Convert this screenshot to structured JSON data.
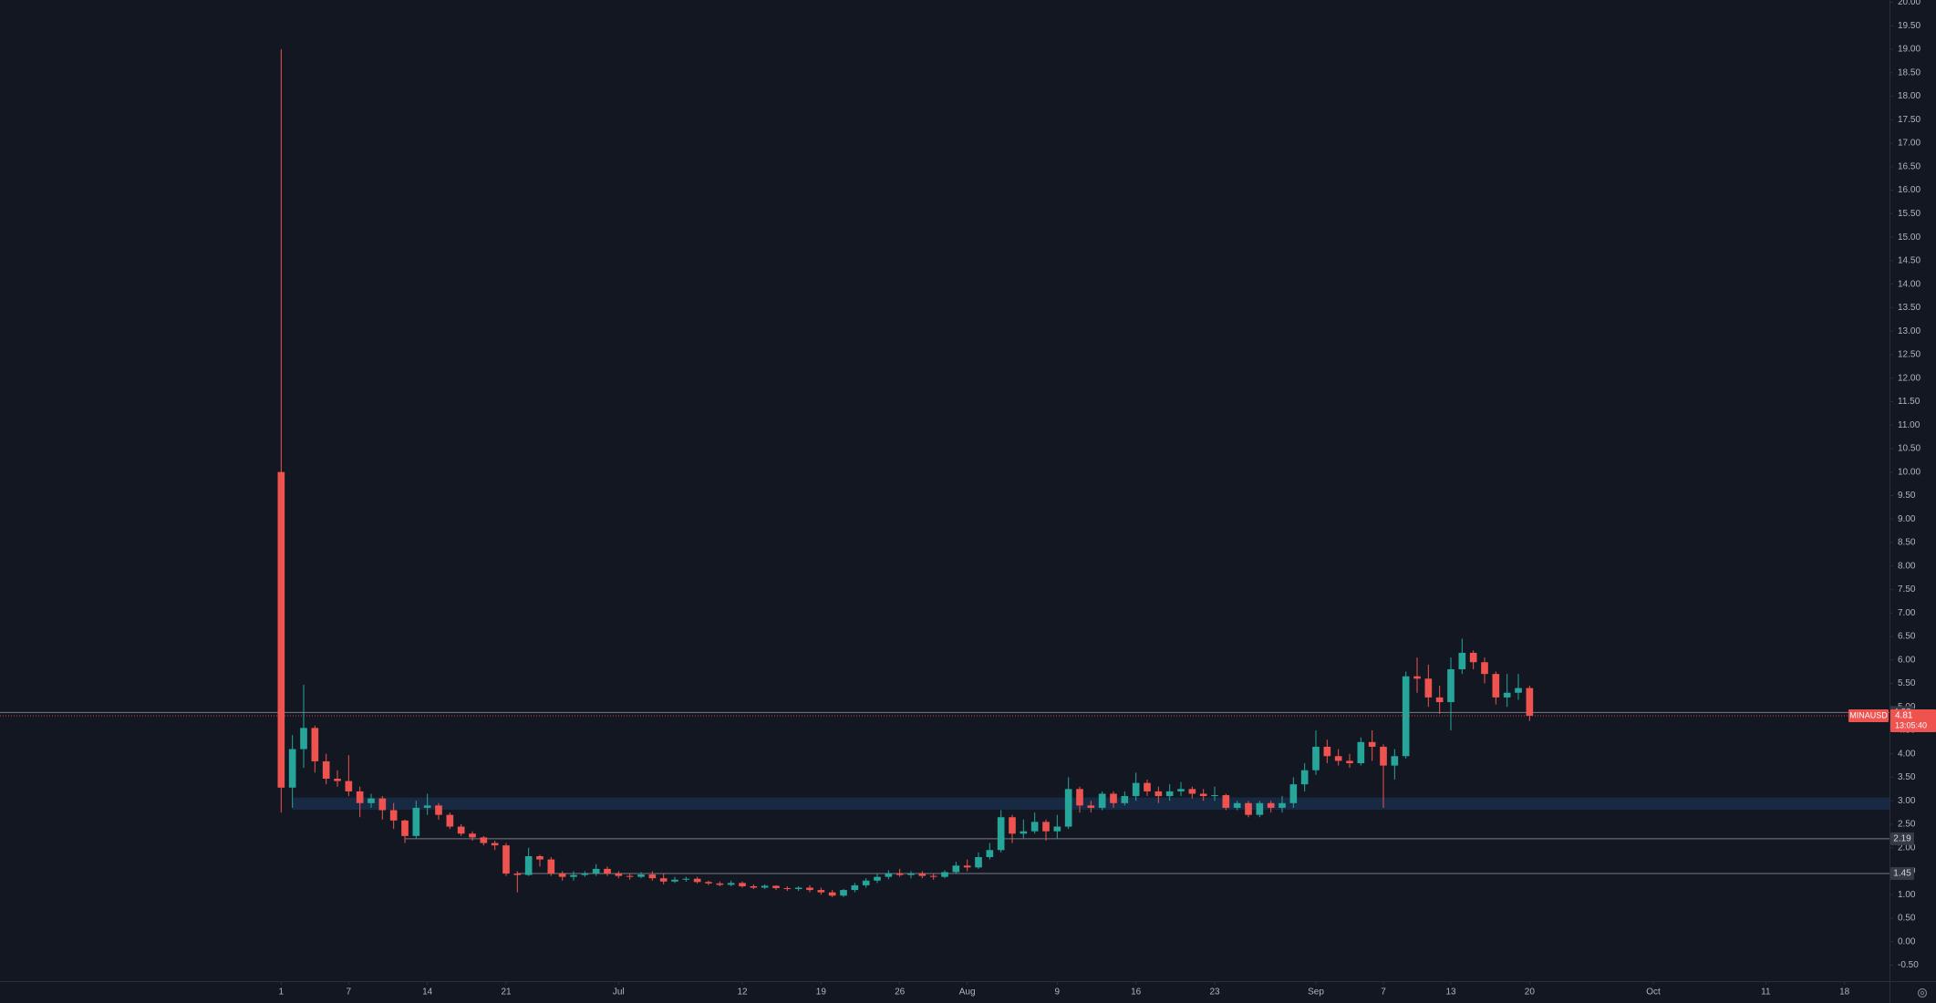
{
  "chart_data": {
    "type": "candlestick",
    "symbol": "MINAUSD",
    "countdown": "13:05:40",
    "up_color": "#26a69a",
    "down_color": "#ef5350",
    "x": [
      0,
      1,
      2,
      3,
      4,
      5,
      6,
      7,
      8,
      9,
      10,
      11,
      12,
      13,
      14,
      15,
      16,
      17,
      18,
      19,
      20,
      21,
      22,
      23,
      24,
      25,
      26,
      27,
      28,
      29,
      30,
      31,
      32,
      33,
      34,
      35,
      36,
      37,
      38,
      39,
      40,
      41,
      42,
      43,
      44,
      45,
      46,
      47,
      48,
      49,
      50,
      51,
      52,
      53,
      54,
      55,
      56,
      57,
      58,
      59,
      60,
      61,
      62,
      63,
      64,
      65,
      66,
      67,
      68,
      69,
      70,
      71,
      72,
      73,
      74,
      75,
      76,
      77,
      78,
      79,
      80,
      81,
      82,
      83,
      84,
      85,
      86,
      87,
      88,
      89,
      90,
      91,
      92,
      93,
      94,
      95,
      96,
      97,
      98,
      99,
      100,
      101,
      102,
      103,
      104,
      105,
      106,
      107,
      108,
      109,
      110,
      111
    ],
    "open": [
      10,
      3.28,
      4.1,
      4.55,
      3.84,
      3.47,
      3.42,
      3.2,
      2.95,
      3.05,
      2.8,
      2.58,
      2.25,
      2.85,
      2.9,
      2.7,
      2.45,
      2.3,
      2.22,
      2.1,
      2.05,
      1.45,
      1.42,
      1.82,
      1.75,
      1.45,
      1.38,
      1.42,
      1.45,
      1.55,
      1.45,
      1.4,
      1.38,
      1.43,
      1.35,
      1.28,
      1.32,
      1.34,
      1.27,
      1.24,
      1.21,
      1.25,
      1.18,
      1.15,
      1.19,
      1.14,
      1.12,
      1.15,
      1.1,
      1.05,
      0.98,
      1.1,
      1.2,
      1.3,
      1.38,
      1.45,
      1.42,
      1.45,
      1.4,
      1.38,
      1.48,
      1.62,
      1.58,
      1.8,
      1.95,
      2.65,
      2.3,
      2.35,
      2.55,
      2.35,
      2.45,
      3.25,
      2.9,
      2.85,
      3.15,
      2.95,
      3.1,
      3.38,
      3.2,
      3.1,
      3.2,
      3.25,
      3.15,
      3.1,
      3.12,
      2.85,
      2.95,
      2.7,
      2.95,
      2.85,
      2.95,
      3.35,
      3.65,
      4.15,
      3.95,
      3.85,
      3.8,
      4.25,
      4.15,
      3.75,
      3.95,
      5.65,
      5.6,
      5.2,
      5.1,
      5.8,
      6.15,
      5.95,
      5.7,
      5.2,
      5.3,
      5.4
    ],
    "high": [
      19.0,
      4.4,
      5.47,
      4.6,
      4.0,
      3.65,
      3.97,
      3.3,
      3.15,
      3.1,
      2.95,
      2.6,
      3.0,
      3.15,
      2.95,
      2.75,
      2.5,
      2.35,
      2.25,
      2.15,
      2.1,
      1.5,
      2.0,
      1.85,
      1.8,
      1.5,
      1.5,
      1.5,
      1.65,
      1.6,
      1.5,
      1.45,
      1.48,
      1.5,
      1.45,
      1.38,
      1.38,
      1.38,
      1.3,
      1.28,
      1.3,
      1.28,
      1.22,
      1.22,
      1.2,
      1.18,
      1.18,
      1.2,
      1.15,
      1.1,
      1.12,
      1.25,
      1.35,
      1.45,
      1.52,
      1.55,
      1.5,
      1.5,
      1.45,
      1.52,
      1.7,
      1.75,
      1.9,
      2.1,
      2.8,
      2.7,
      2.6,
      2.75,
      2.6,
      2.7,
      3.5,
      3.3,
      3.0,
      3.2,
      3.2,
      3.2,
      3.6,
      3.45,
      3.3,
      3.35,
      3.4,
      3.3,
      3.25,
      3.3,
      3.15,
      3.0,
      3.0,
      3.0,
      3.0,
      3.1,
      3.5,
      3.8,
      4.5,
      4.3,
      4.1,
      4.0,
      4.35,
      4.5,
      4.2,
      4.1,
      5.75,
      6.05,
      5.9,
      5.45,
      6.05,
      6.45,
      6.2,
      6.05,
      5.75,
      5.7,
      5.7,
      5.45
    ],
    "low": [
      2.75,
      2.85,
      3.7,
      3.6,
      3.35,
      3.3,
      3.1,
      2.65,
      2.85,
      2.6,
      2.4,
      2.1,
      2.2,
      2.7,
      2.6,
      2.4,
      2.25,
      2.15,
      2.05,
      1.95,
      1.4,
      1.05,
      1.4,
      1.6,
      1.4,
      1.3,
      1.3,
      1.38,
      1.4,
      1.4,
      1.35,
      1.32,
      1.35,
      1.3,
      1.22,
      1.25,
      1.28,
      1.24,
      1.2,
      1.18,
      1.18,
      1.15,
      1.12,
      1.12,
      1.1,
      1.08,
      1.08,
      1.05,
      1.0,
      0.95,
      0.95,
      1.05,
      1.15,
      1.25,
      1.33,
      1.38,
      1.35,
      1.35,
      1.32,
      1.35,
      1.45,
      1.5,
      1.55,
      1.75,
      1.9,
      2.1,
      2.2,
      2.3,
      2.15,
      2.2,
      2.4,
      2.75,
      2.75,
      2.8,
      2.85,
      2.9,
      3.0,
      3.1,
      2.95,
      3.0,
      3.1,
      3.05,
      3.0,
      3.0,
      2.8,
      2.8,
      2.65,
      2.65,
      2.75,
      2.75,
      2.85,
      3.2,
      3.55,
      3.8,
      3.75,
      3.7,
      3.75,
      3.85,
      2.85,
      3.45,
      3.9,
      5.3,
      5.0,
      4.85,
      4.5,
      5.7,
      5.8,
      5.5,
      5.05,
      5.0,
      5.15,
      4.7
    ],
    "close": [
      3.28,
      4.1,
      4.55,
      3.84,
      3.47,
      3.42,
      3.2,
      2.95,
      3.05,
      2.8,
      2.58,
      2.25,
      2.85,
      2.9,
      2.7,
      2.45,
      2.3,
      2.22,
      2.1,
      2.05,
      1.45,
      1.42,
      1.82,
      1.75,
      1.45,
      1.38,
      1.42,
      1.45,
      1.55,
      1.45,
      1.4,
      1.38,
      1.43,
      1.35,
      1.28,
      1.32,
      1.34,
      1.27,
      1.24,
      1.21,
      1.25,
      1.18,
      1.15,
      1.19,
      1.14,
      1.12,
      1.15,
      1.1,
      1.05,
      0.98,
      1.1,
      1.2,
      1.3,
      1.38,
      1.45,
      1.42,
      1.45,
      1.4,
      1.38,
      1.48,
      1.62,
      1.58,
      1.8,
      1.95,
      2.65,
      2.3,
      2.35,
      2.55,
      2.35,
      2.45,
      3.25,
      2.9,
      2.85,
      3.15,
      2.95,
      3.1,
      3.38,
      3.2,
      3.1,
      3.2,
      3.25,
      3.15,
      3.1,
      3.12,
      2.85,
      2.95,
      2.7,
      2.95,
      2.85,
      2.95,
      3.35,
      3.65,
      4.15,
      3.95,
      3.85,
      3.8,
      4.25,
      4.15,
      3.75,
      3.95,
      5.65,
      5.6,
      5.2,
      5.1,
      5.8,
      6.15,
      5.95,
      5.7,
      5.2,
      5.3,
      5.4,
      4.81
    ],
    "xlim": [
      -25,
      143
    ],
    "ylim": [
      -0.84,
      20.05
    ],
    "xticks": [
      {
        "value": 0,
        "label": "1"
      },
      {
        "value": 6,
        "label": "7"
      },
      {
        "value": 13,
        "label": "14"
      },
      {
        "value": 20,
        "label": "21"
      },
      {
        "value": 30,
        "label": "Jul"
      },
      {
        "value": 41,
        "label": "12"
      },
      {
        "value": 48,
        "label": "19"
      },
      {
        "value": 55,
        "label": "26"
      },
      {
        "value": 61,
        "label": "Aug"
      },
      {
        "value": 69,
        "label": "9"
      },
      {
        "value": 76,
        "label": "16"
      },
      {
        "value": 83,
        "label": "23"
      },
      {
        "value": 92,
        "label": "Sep"
      },
      {
        "value": 98,
        "label": "7"
      },
      {
        "value": 104,
        "label": "13"
      },
      {
        "value": 111,
        "label": "20"
      },
      {
        "value": 122,
        "label": "Oct"
      },
      {
        "value": 132,
        "label": "11"
      },
      {
        "value": 139,
        "label": "18"
      }
    ],
    "yticks": [
      {
        "value": -0.5,
        "label": "-0.50"
      },
      {
        "value": 0,
        "label": "0.00"
      },
      {
        "value": 0.5,
        "label": "0.50"
      },
      {
        "value": 1,
        "label": "1.00"
      },
      {
        "value": 1.5,
        "label": "1.50"
      },
      {
        "value": 2,
        "label": "2.00"
      },
      {
        "value": 2.5,
        "label": "2.50"
      },
      {
        "value": 3,
        "label": "3.00"
      },
      {
        "value": 3.5,
        "label": "3.50"
      },
      {
        "value": 4,
        "label": "4.00"
      },
      {
        "value": 4.5,
        "label": "4.50"
      },
      {
        "value": 5,
        "label": "5.00"
      },
      {
        "value": 5.5,
        "label": "5.50"
      },
      {
        "value": 6,
        "label": "6.00"
      },
      {
        "value": 6.5,
        "label": "6.50"
      },
      {
        "value": 7,
        "label": "7.00"
      },
      {
        "value": 7.5,
        "label": "7.50"
      },
      {
        "value": 8,
        "label": "8.00"
      },
      {
        "value": 8.5,
        "label": "8.50"
      },
      {
        "value": 9,
        "label": "9.00"
      },
      {
        "value": 9.5,
        "label": "9.50"
      },
      {
        "value": 10,
        "label": "10.00"
      },
      {
        "value": 10.5,
        "label": "10.50"
      },
      {
        "value": 11,
        "label": "11.00"
      },
      {
        "value": 11.5,
        "label": "11.50"
      },
      {
        "value": 12,
        "label": "12.00"
      },
      {
        "value": 12.5,
        "label": "12.50"
      },
      {
        "value": 13,
        "label": "13.00"
      },
      {
        "value": 13.5,
        "label": "13.50"
      },
      {
        "value": 14,
        "label": "14.00"
      },
      {
        "value": 14.5,
        "label": "14.50"
      },
      {
        "value": 15,
        "label": "15.00"
      },
      {
        "value": 15.5,
        "label": "15.50"
      },
      {
        "value": 16,
        "label": "16.00"
      },
      {
        "value": 16.5,
        "label": "16.50"
      },
      {
        "value": 17,
        "label": "17.00"
      },
      {
        "value": 17.5,
        "label": "17.50"
      },
      {
        "value": 18,
        "label": "18.00"
      },
      {
        "value": 18.5,
        "label": "18.50"
      },
      {
        "value": 19,
        "label": "19.00"
      },
      {
        "value": 19.5,
        "label": "19.50"
      },
      {
        "value": 20,
        "label": "20.00"
      }
    ],
    "price_lines": [
      {
        "value": 4.88
      },
      {
        "value": 2.19,
        "from": 11
      },
      {
        "value": 1.45,
        "from": 21
      }
    ],
    "zone": {
      "low": 2.81,
      "high": 3.07,
      "from": 1
    }
  }
}
